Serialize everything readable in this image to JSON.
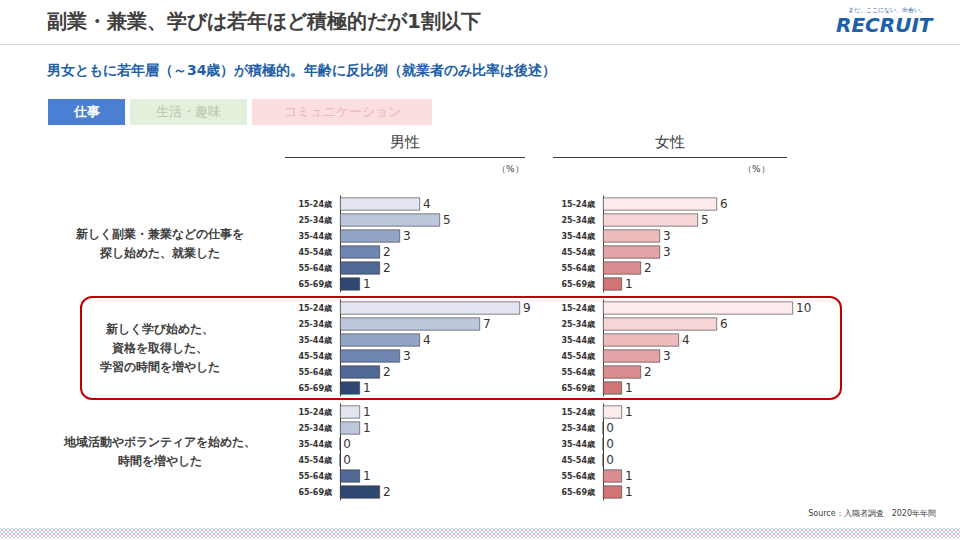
{
  "header": {
    "title": "副業・兼業、学びは若年ほど積極的だが1割以下",
    "tagline": "まだ、ここにない、出会い。",
    "logo": "RECRUIT"
  },
  "subtitle": "男女ともに若年層（～34歳）が積極的。年齢に反比例（就業者のみ比率は後述）",
  "tabs": [
    "仕事",
    "生活・趣味",
    "コミュニケーション"
  ],
  "panels": [
    "男性",
    "女性"
  ],
  "unit": "（%）",
  "rows": [
    "新しく副業・兼業などの仕事を\n探し始めた、就業した",
    "新しく学び始めた、\n資格を取得した、\n学習の時間を増やした",
    "地域活動やボランティアを始めた、\n時間を増やした"
  ],
  "source": "Source：入職者調査　2020年年間",
  "chart_data": [
    {
      "type": "bar",
      "orientation": "horizontal",
      "categories": [
        "15-24歳",
        "25-34歳",
        "35-44歳",
        "45-54歳",
        "55-64歳",
        "65-69歳"
      ],
      "values": [
        4,
        5,
        3,
        2,
        2,
        1
      ],
      "colors": [
        "#e1e6f0",
        "#bcc7dc",
        "#93a5c6",
        "#6f86b0",
        "#4f6895",
        "#2f4870"
      ],
      "xlim": [
        0,
        10
      ],
      "data_labels": true,
      "tick_labels": "y",
      "grid": false
    },
    {
      "type": "bar",
      "orientation": "horizontal",
      "categories": [
        "15-24歳",
        "25-34歳",
        "35-44歳",
        "45-54歳",
        "55-64歳",
        "65-69歳"
      ],
      "values": [
        6,
        5,
        3,
        3,
        2,
        1
      ],
      "colors": [
        "#fbebec",
        "#f5d5d6",
        "#ecbcbd",
        "#e3a4a6",
        "#da8d8f",
        "#d27476"
      ],
      "xlim": [
        0,
        10
      ],
      "data_labels": true,
      "tick_labels": "y",
      "grid": false
    },
    {
      "type": "bar",
      "orientation": "horizontal",
      "categories": [
        "15-24歳",
        "25-34歳",
        "35-44歳",
        "45-54歳",
        "55-64歳",
        "65-69歳"
      ],
      "values": [
        9,
        7,
        4,
        3,
        2,
        1
      ],
      "colors": [
        "#e1e6f0",
        "#bcc7dc",
        "#93a5c6",
        "#6f86b0",
        "#4f6895",
        "#2f4870"
      ],
      "xlim": [
        0,
        10
      ],
      "data_labels": true,
      "tick_labels": "y",
      "grid": false
    },
    {
      "type": "bar",
      "orientation": "horizontal",
      "categories": [
        "15-24歳",
        "25-34歳",
        "35-44歳",
        "45-54歳",
        "55-64歳",
        "65-69歳"
      ],
      "values": [
        10,
        6,
        4,
        3,
        2,
        1
      ],
      "colors": [
        "#fbebec",
        "#f5d5d6",
        "#ecbcbd",
        "#e3a4a6",
        "#da8d8f",
        "#d27476"
      ],
      "xlim": [
        0,
        10
      ],
      "data_labels": true,
      "tick_labels": "y",
      "grid": false
    },
    {
      "type": "bar",
      "orientation": "horizontal",
      "categories": [
        "15-24歳",
        "25-34歳",
        "35-44歳",
        "45-54歳",
        "55-64歳",
        "65-69歳"
      ],
      "values": [
        1,
        1,
        0,
        0,
        1,
        2
      ],
      "colors": [
        "#e1e6f0",
        "#bcc7dc",
        "#93a5c6",
        "#6f86b0",
        "#4f6895",
        "#2f4870"
      ],
      "xlim": [
        0,
        10
      ],
      "data_labels": true,
      "tick_labels": "y",
      "grid": false
    },
    {
      "type": "bar",
      "orientation": "horizontal",
      "categories": [
        "15-24歳",
        "25-34歳",
        "35-44歳",
        "45-54歳",
        "55-64歳",
        "65-69歳"
      ],
      "values": [
        1,
        0,
        0,
        0,
        1,
        1
      ],
      "colors": [
        "#fbebec",
        "#f5d5d6",
        "#ecbcbd",
        "#e3a4a6",
        "#da8d8f",
        "#d27476"
      ],
      "xlim": [
        0,
        10
      ],
      "data_labels": true,
      "tick_labels": "y",
      "grid": false
    }
  ]
}
